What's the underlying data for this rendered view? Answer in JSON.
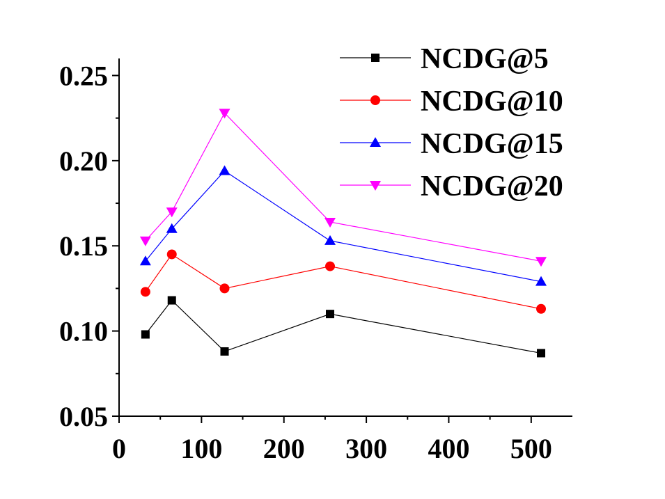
{
  "chart_data": {
    "type": "line",
    "title": "",
    "xlabel": "",
    "ylabel": "",
    "xlim": [
      0,
      550
    ],
    "ylim": [
      0.05,
      0.26
    ],
    "xticks": [
      0,
      100,
      200,
      300,
      400,
      500
    ],
    "yticks": [
      0.05,
      0.1,
      0.15,
      0.2,
      0.25
    ],
    "xtick_labels": [
      "0",
      "100",
      "200",
      "300",
      "400",
      "500"
    ],
    "ytick_labels": [
      "0.05",
      "0.10",
      "0.15",
      "0.20",
      "0.25"
    ],
    "grid": false,
    "legend_position": "top-right",
    "x": [
      32,
      64,
      128,
      256,
      512
    ],
    "series": [
      {
        "name": "NCDG@5",
        "values": [
          0.098,
          0.118,
          0.088,
          0.11,
          0.087
        ],
        "color": "#000000",
        "marker": "square"
      },
      {
        "name": "NCDG@10",
        "values": [
          0.123,
          0.145,
          0.125,
          0.138,
          0.113
        ],
        "color": "#ff0000",
        "marker": "circle"
      },
      {
        "name": "NCDG@15",
        "values": [
          0.141,
          0.16,
          0.194,
          0.153,
          0.129
        ],
        "color": "#0000ff",
        "marker": "triangle-up"
      },
      {
        "name": "NCDG@20",
        "values": [
          0.153,
          0.17,
          0.228,
          0.164,
          0.141
        ],
        "color": "#ff00ff",
        "marker": "triangle-down"
      }
    ]
  }
}
